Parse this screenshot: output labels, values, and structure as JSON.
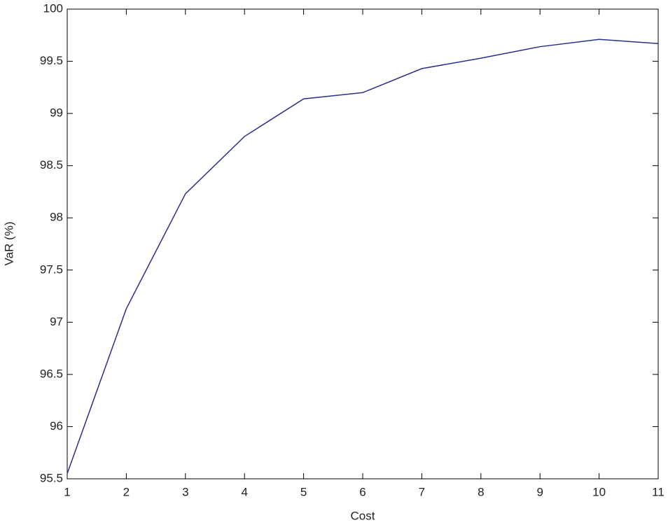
{
  "chart_data": {
    "type": "line",
    "x_label": "Cost",
    "y_label": "VaR (%)",
    "x": [
      1,
      2,
      3,
      4,
      5,
      6,
      7,
      8,
      9,
      10,
      11
    ],
    "series": [
      {
        "name": "VaR",
        "color": "#2b2f8c",
        "values": [
          95.55,
          97.13,
          98.23,
          98.78,
          99.14,
          99.2,
          99.43,
          99.53,
          99.64,
          99.71,
          99.67
        ]
      }
    ],
    "xlim": [
      1,
      11
    ],
    "xticks": [
      1,
      2,
      3,
      4,
      5,
      6,
      7,
      8,
      9,
      10,
      11
    ],
    "ylim": [
      95.5,
      100
    ],
    "yticks": [
      95.5,
      96,
      96.5,
      97,
      97.5,
      98,
      98.5,
      99,
      99.5,
      100
    ],
    "grid": false
  }
}
